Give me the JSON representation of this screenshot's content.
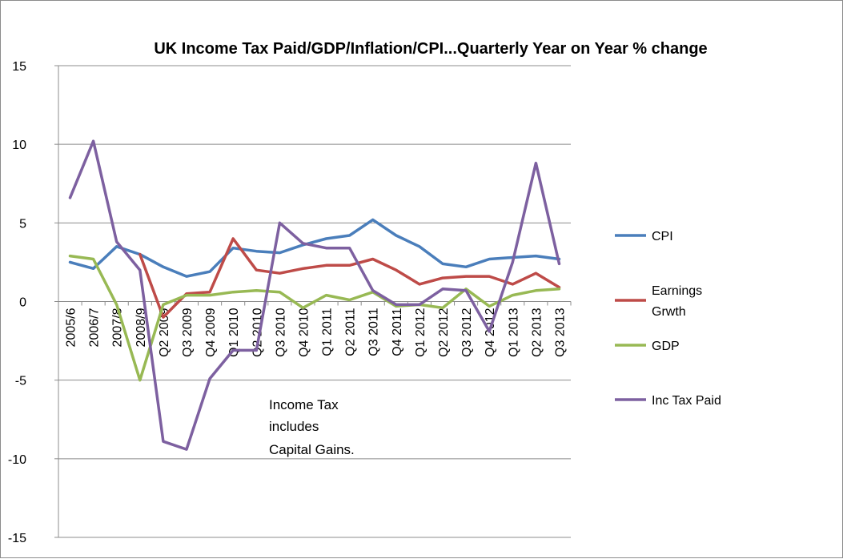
{
  "chart_data": {
    "type": "line",
    "title": "UK Income Tax Paid/GDP/Inflation/CPI...Quarterly Year on Year % change",
    "xlabel": "",
    "ylabel": "",
    "ylim": [
      -15,
      15
    ],
    "yticks": [
      "15",
      "10",
      "5",
      "0",
      "-5",
      "-10",
      "-15"
    ],
    "categories": [
      "2005/6",
      "2006/7",
      "2007/8",
      "2008/9",
      "Q2 2009",
      "Q3 2009",
      "Q4 2009",
      "Q1 2010",
      "Q2 2010",
      "Q3 2010",
      "Q4 2010",
      "Q1 2011",
      "Q2 2011",
      "Q3 2011",
      "Q4 2011",
      "Q1 2012",
      "Q2 2012",
      "Q3 2012",
      "Q4 2012",
      "Q1 2013",
      "Q2 2013",
      "Q3 2013"
    ],
    "grid": true,
    "legend_position": "right",
    "series": [
      {
        "name": "CPI",
        "color": "#4a7ebb",
        "values": [
          2.5,
          2.1,
          3.5,
          3.0,
          2.2,
          1.6,
          1.9,
          3.4,
          3.2,
          3.1,
          3.6,
          4.0,
          4.2,
          5.2,
          4.2,
          3.5,
          2.4,
          2.2,
          2.7,
          2.8,
          2.9,
          2.7
        ]
      },
      {
        "name": "Earnings Grwth",
        "color": "#be4b48",
        "values": [
          null,
          null,
          null,
          3.0,
          -1.0,
          0.5,
          0.6,
          4.0,
          2.0,
          1.8,
          2.1,
          2.3,
          2.3,
          2.7,
          2.0,
          1.1,
          1.5,
          1.6,
          1.6,
          1.1,
          1.8,
          0.9
        ]
      },
      {
        "name": "GDP",
        "color": "#98b954",
        "values": [
          2.9,
          2.7,
          -0.2,
          -5.0,
          -0.2,
          0.4,
          0.4,
          0.6,
          0.7,
          0.6,
          -0.4,
          0.4,
          0.1,
          0.6,
          -0.3,
          -0.2,
          -0.4,
          0.8,
          -0.3,
          0.4,
          0.7,
          0.8
        ]
      },
      {
        "name": "Inc Tax Paid",
        "color": "#7d60a0",
        "values": [
          6.6,
          10.2,
          3.8,
          2.0,
          -8.9,
          -9.4,
          -4.9,
          -3.1,
          -3.1,
          5.0,
          3.7,
          3.4,
          3.4,
          0.7,
          -0.2,
          -0.2,
          0.8,
          0.7,
          -1.9,
          2.5,
          8.8,
          2.4
        ]
      }
    ],
    "annotation": [
      "Income Tax",
      "includes",
      "Capital Gains."
    ]
  }
}
